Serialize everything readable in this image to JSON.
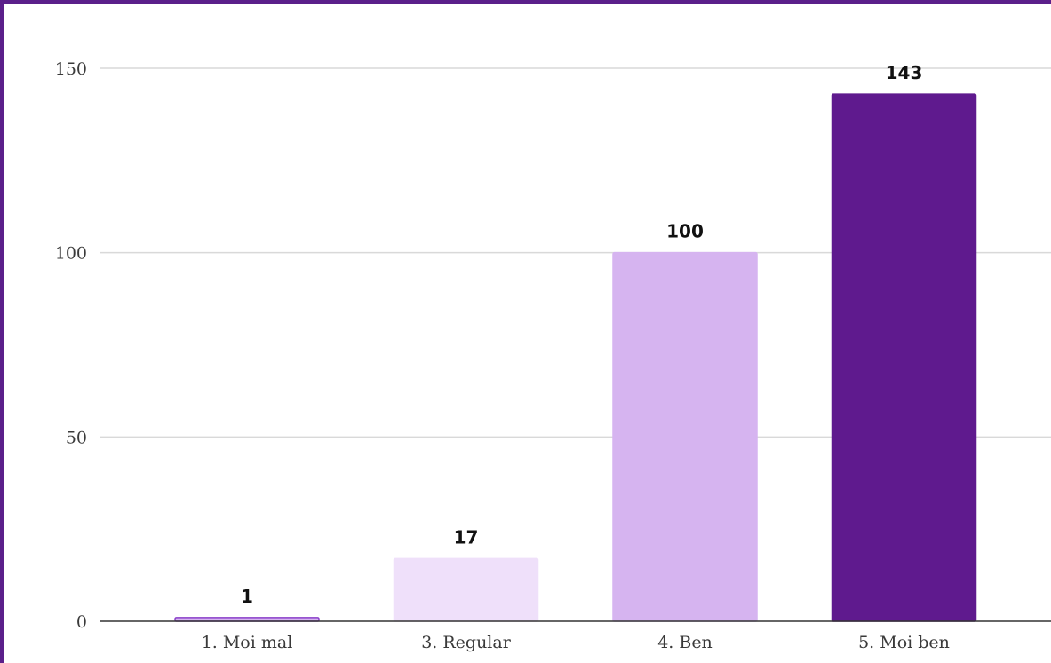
{
  "chart_data": {
    "type": "bar",
    "categories": [
      "1. Moi mal",
      "3. Regular",
      "4. Ben",
      "5. Moi ben"
    ],
    "values": [
      1,
      17,
      100,
      143
    ],
    "data_labels": [
      "1",
      "17",
      "100",
      "143"
    ],
    "colors": [
      "#d6b4f0",
      "#efe0fa",
      "#d6b4f0",
      "#5f1a8e"
    ],
    "bar_border_colors": [
      "#8a3fc9",
      "#efe0fa",
      "#d6b4f0",
      "#5f1a8e"
    ],
    "ylim": [
      0,
      150
    ],
    "yticks": [
      0,
      50,
      100,
      150
    ],
    "ytick_labels": [
      "0",
      "50",
      "100",
      "150"
    ],
    "grid": true,
    "frame_color": "#5b1f8a"
  }
}
